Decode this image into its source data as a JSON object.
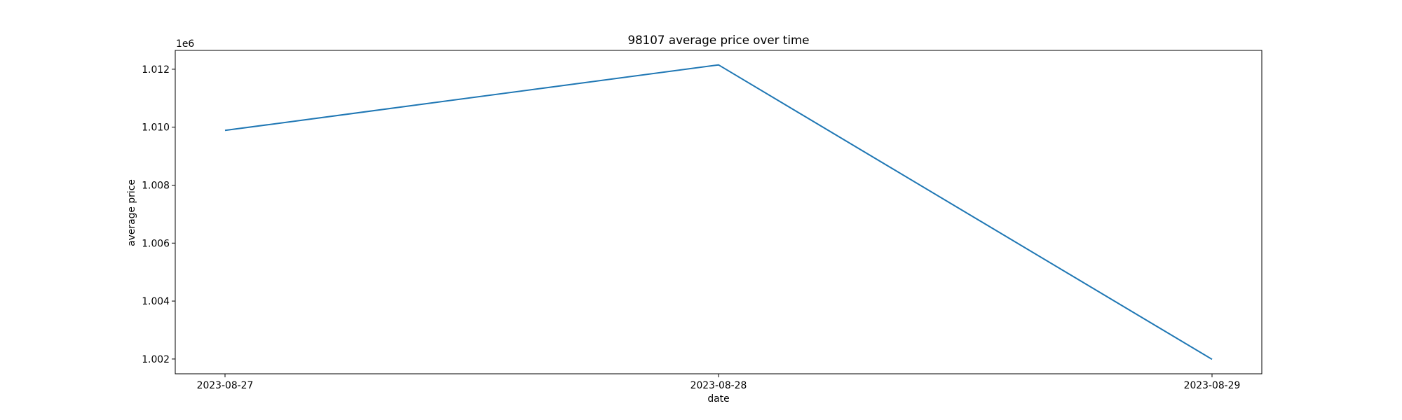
{
  "chart_data": {
    "type": "line",
    "title": "98107 average price over time",
    "xlabel": "date",
    "ylabel": "average price",
    "offset_label": "1e6",
    "x": [
      "2023-08-27",
      "2023-08-28",
      "2023-08-29"
    ],
    "series": [
      {
        "values": [
          1009890,
          1012150,
          1001990
        ]
      }
    ],
    "ylim": [
      1001490,
      1012650
    ],
    "yticks": [
      1.002,
      1.004,
      1.006,
      1.008,
      1.01,
      1.012
    ],
    "ytick_labels": [
      "1.002",
      "1.004",
      "1.006",
      "1.008",
      "1.010",
      "1.012"
    ],
    "ytick_scale": 1000000,
    "grid": false,
    "line_color": "#1f77b4"
  }
}
